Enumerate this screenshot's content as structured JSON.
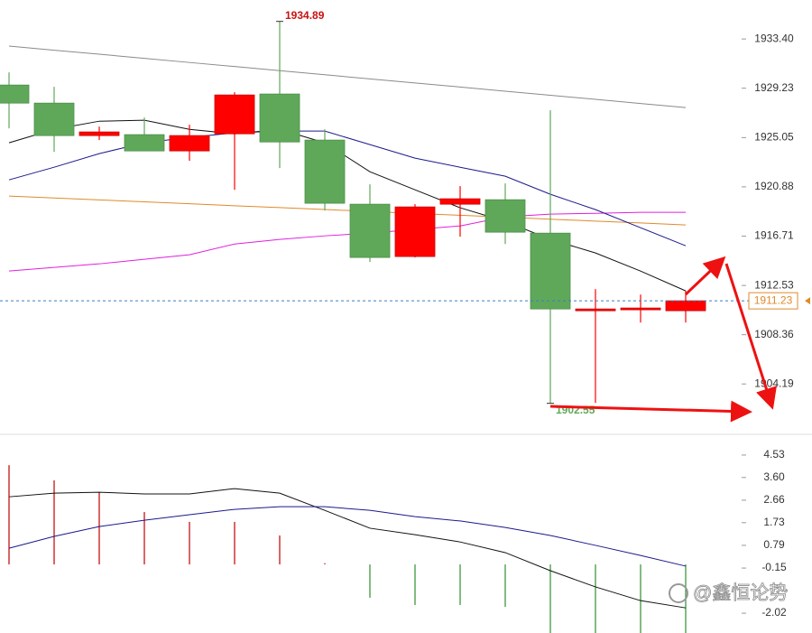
{
  "chart_data": [
    {
      "type": "candlestick",
      "up_color": "#ff0000",
      "down_color": "#5fa85a",
      "open": [
        1929.5,
        1927.97,
        1925.22,
        1925.3,
        1923.92,
        1925.37,
        1928.74,
        1924.84,
        1919.41,
        1914.98,
        1919.41,
        1919.79,
        1916.96,
        1910.39,
        1910.47,
        1910.39
      ],
      "high": [
        1930.57,
        1929.35,
        1925.98,
        1926.75,
        1926.14,
        1928.89,
        1934.89,
        1925.75,
        1921.09,
        1919.41,
        1920.94,
        1921.17,
        1927.36,
        1912.22,
        1911.76,
        1912.07
      ],
      "low": [
        1925.83,
        1923.84,
        1924.84,
        1923.92,
        1923.08,
        1920.63,
        1922.47,
        1918.87,
        1914.52,
        1914.9,
        1916.66,
        1916.04,
        1902.55,
        1902.59,
        1909.39,
        1909.39
      ],
      "close": [
        1927.97,
        1925.22,
        1925.53,
        1923.92,
        1925.22,
        1928.66,
        1924.68,
        1919.49,
        1914.9,
        1919.18,
        1919.87,
        1917.04,
        1910.54,
        1910.54,
        1910.62,
        1911.23
      ],
      "series": [
        {
          "color": "#8a8a8a",
          "values": [
            1932.8,
            1932.45,
            1932.11,
            1931.76,
            1931.41,
            1931.07,
            1930.72,
            1930.37,
            1930.02,
            1929.68,
            1929.33,
            1928.98,
            1928.63,
            1928.29,
            1927.94,
            1927.59
          ]
        },
        {
          "color": "#e08a2a",
          "values": [
            1920.1,
            1919.94,
            1919.77,
            1919.61,
            1919.45,
            1919.28,
            1919.12,
            1918.96,
            1918.8,
            1918.63,
            1918.47,
            1918.31,
            1918.14,
            1917.98,
            1917.82,
            1917.65
          ]
        },
        {
          "color": "#e020e0",
          "values": [
            1913.75,
            1914.06,
            1914.36,
            1914.75,
            1915.13,
            1916.04,
            1916.43,
            1916.73,
            1916.96,
            1917.27,
            1917.57,
            1918.34,
            1918.57,
            1918.64,
            1918.72,
            1918.72
          ]
        },
        {
          "color": "#1a1a8c",
          "values": [
            1921.47,
            1922.54,
            1923.69,
            1924.61,
            1925.07,
            1925.45,
            1925.6,
            1925.6,
            1924.46,
            1923.31,
            1922.54,
            1921.78,
            1920.25,
            1918.95,
            1917.42,
            1915.89
          ]
        },
        {
          "color": "#111111",
          "values": [
            1924.61,
            1925.75,
            1926.44,
            1926.52,
            1925.75,
            1925.37,
            1925.75,
            1924.61,
            1922.16,
            1920.63,
            1919.11,
            1917.96,
            1916.43,
            1915.28,
            1913.75,
            1912.07
          ]
        }
      ],
      "ylim": [
        1900,
        1936.7
      ],
      "yticks": [
        {
          "value": 1933.4,
          "label": "1933.40"
        },
        1929.23,
        1925.05,
        1920.88,
        1916.71,
        1912.53,
        1908.36,
        1904.19
      ]
    },
    {
      "type": "bar",
      "up_color": "#c00000",
      "down_color": "#2f8f2f",
      "values": [
        4.11,
        3.48,
        2.99,
        2.17,
        1.76,
        1.76,
        1.2,
        0.05,
        -1.38,
        -1.68,
        -1.68,
        -1.76,
        -2.84,
        -2.84,
        -2.84,
        -2.84
      ],
      "series": [
        {
          "color": "#111111",
          "values": [
            2.8,
            2.95,
            2.99,
            2.92,
            2.92,
            3.14,
            2.95,
            2.24,
            1.5,
            1.23,
            0.93,
            0.49,
            -0.26,
            -0.93,
            -1.5,
            -1.8
          ]
        },
        {
          "color": "#1a1a8c",
          "values": [
            0.67,
            1.16,
            1.57,
            1.83,
            2.06,
            2.28,
            2.39,
            2.39,
            2.24,
            1.98,
            1.8,
            1.53,
            1.2,
            0.79,
            0.37,
            -0.07
          ]
        }
      ],
      "ylim": [
        -2.84,
        5.35
      ],
      "yticks": [
        4.53,
        {
          "value": 3.6,
          "label": "3.60"
        },
        2.66,
        1.73,
        0.79,
        -0.15,
        -2.02
      ]
    }
  ],
  "watermark": "@鑫恒论势"
}
